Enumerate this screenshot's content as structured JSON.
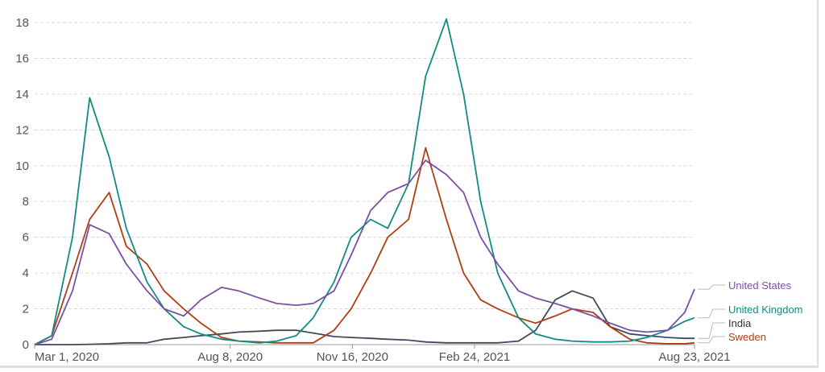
{
  "chart_data": {
    "type": "line",
    "title": "",
    "xlabel": "",
    "ylabel": "",
    "ylim": [
      0,
      18.5
    ],
    "yticks": [
      0,
      2,
      4,
      6,
      8,
      10,
      12,
      14,
      16,
      18
    ],
    "xlim": [
      "2020-03-01",
      "2021-08-23"
    ],
    "xticks": [
      {
        "date": "2020-03-01",
        "label": "Mar 1, 2020"
      },
      {
        "date": "2020-08-08",
        "label": "Aug 8, 2020"
      },
      {
        "date": "2020-11-16",
        "label": "Nov 16, 2020"
      },
      {
        "date": "2021-02-24",
        "label": "Feb 24, 2021"
      },
      {
        "date": "2021-08-23",
        "label": "Aug 23, 2021"
      }
    ],
    "grid": "horizontal dashed",
    "legend": "right, labels at line ends",
    "x": [
      "2020-03-01",
      "2020-03-15",
      "2020-04-01",
      "2020-04-15",
      "2020-05-01",
      "2020-05-15",
      "2020-06-01",
      "2020-06-15",
      "2020-07-01",
      "2020-07-15",
      "2020-08-01",
      "2020-08-15",
      "2020-09-01",
      "2020-09-15",
      "2020-10-01",
      "2020-10-15",
      "2020-11-01",
      "2020-11-15",
      "2020-12-01",
      "2020-12-15",
      "2021-01-01",
      "2021-01-15",
      "2021-02-01",
      "2021-02-15",
      "2021-03-01",
      "2021-03-15",
      "2021-04-01",
      "2021-04-15",
      "2021-05-01",
      "2021-05-15",
      "2021-06-01",
      "2021-06-15",
      "2021-07-01",
      "2021-07-15",
      "2021-08-01",
      "2021-08-15",
      "2021-08-23"
    ],
    "series": [
      {
        "name": "United States",
        "color": "#7b4fa5",
        "values": [
          0,
          0.3,
          3,
          6.7,
          6.2,
          4.5,
          3,
          2,
          1.6,
          2.5,
          3.2,
          3,
          2.6,
          2.3,
          2.2,
          2.3,
          3,
          5,
          7.5,
          8.5,
          9,
          10.3,
          9.5,
          8.5,
          6,
          4.5,
          3,
          2.6,
          2.3,
          2,
          1.6,
          1.2,
          0.8,
          0.7,
          0.8,
          1.8,
          3.1
        ]
      },
      {
        "name": "United Kingdom",
        "color": "#138a83",
        "values": [
          0,
          0.5,
          6,
          13.8,
          10.5,
          6.5,
          3.5,
          2,
          1,
          0.6,
          0.3,
          0.2,
          0.1,
          0.2,
          0.5,
          1.5,
          3.5,
          6,
          7,
          6.5,
          9,
          15,
          18.2,
          14,
          8,
          4,
          1.5,
          0.6,
          0.3,
          0.2,
          0.15,
          0.15,
          0.2,
          0.4,
          0.8,
          1.3,
          1.5
        ]
      },
      {
        "name": "India",
        "color": "#3e4a5e",
        "values": [
          0,
          0,
          0,
          0.02,
          0.05,
          0.1,
          0.1,
          0.3,
          0.4,
          0.5,
          0.6,
          0.7,
          0.75,
          0.8,
          0.8,
          0.65,
          0.45,
          0.4,
          0.35,
          0.3,
          0.25,
          0.15,
          0.1,
          0.1,
          0.1,
          0.1,
          0.2,
          0.8,
          2.5,
          3,
          2.6,
          1,
          0.6,
          0.5,
          0.4,
          0.35,
          0.35
        ]
      },
      {
        "name": "Sweden",
        "color": "#b13d14",
        "values": [
          0,
          0.5,
          4,
          7,
          8.5,
          5.5,
          4.5,
          3,
          2,
          1.2,
          0.4,
          0.2,
          0.15,
          0.1,
          0.1,
          0.1,
          0.8,
          2,
          4,
          6,
          7,
          11,
          7,
          4,
          2.5,
          2,
          1.5,
          1.2,
          1.6,
          2,
          1.8,
          1,
          0.3,
          0.1,
          0.05,
          0.05,
          0.1
        ]
      }
    ]
  }
}
